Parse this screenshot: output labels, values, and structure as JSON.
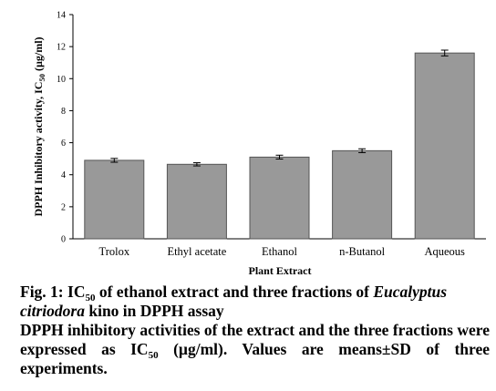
{
  "chart_data": {
    "type": "bar",
    "categories": [
      "Trolox",
      "Ethyl acetate",
      "Ethanol",
      "n-Butanol",
      "Aqueous"
    ],
    "values": [
      4.9,
      4.65,
      5.1,
      5.5,
      11.6
    ],
    "errors": [
      0.12,
      0.1,
      0.12,
      0.12,
      0.18
    ],
    "ylim": [
      0,
      14
    ],
    "yticks": [
      "0",
      "2",
      "4",
      "6",
      "8",
      "10",
      "12",
      "14"
    ],
    "xlabel": "Plant Extract",
    "ylabel": "DPPH Inhibitory activity, IC",
    "ylabel_sub": "50",
    "ylabel_unit": " (µg/ml)",
    "grid": false,
    "colors": {
      "bar": "#999999",
      "bar_edge": "#555555",
      "axis": "#000000"
    }
  },
  "caption": {
    "line1_a": "Fig. 1: IC",
    "line1_sub": "50",
    "line1_b": " of ethanol extract and three fractions of ",
    "line1_italic": "Eucalyptus citriodora",
    "line1_c": " kino in DPPH assay",
    "line2_a": "DPPH inhibitory activities of the extract and the three fractions were expressed as IC",
    "line2_sub": "50",
    "line2_b": " (µg/ml). Values are means±SD of three experiments."
  }
}
